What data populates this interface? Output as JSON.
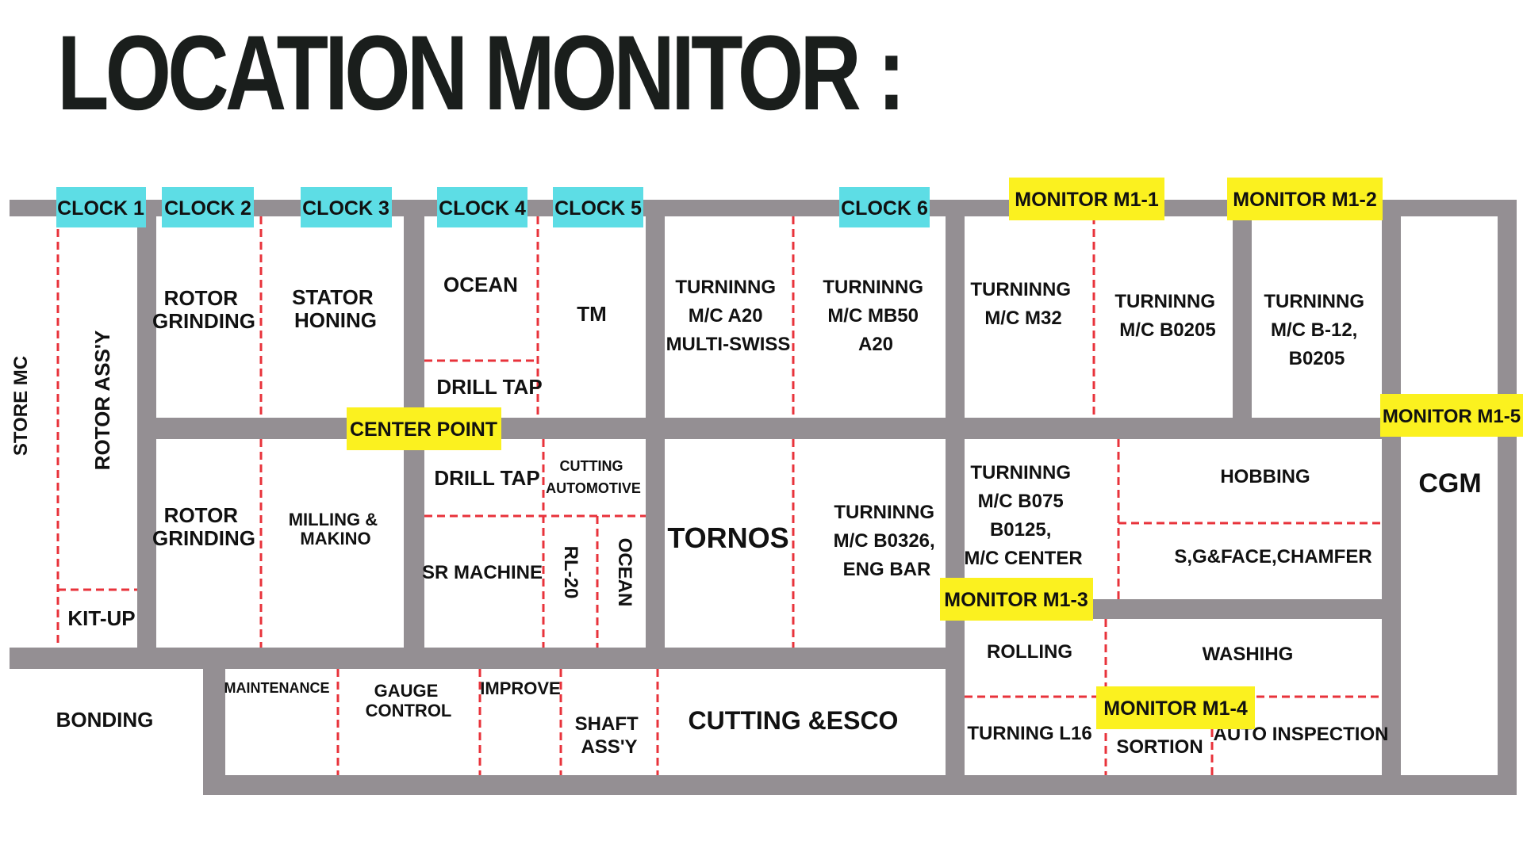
{
  "page": {
    "title": "LOCATION MONITOR :"
  },
  "colors": {
    "wall": "#948f93",
    "divider": "#e8333b",
    "clock_tag": "#5ddde5",
    "monitor_tag": "#fbf11f",
    "text": "#111111",
    "title": "#1a1e1c"
  },
  "areas": {
    "store_mc": "STORE MC",
    "rotor_assy": "ROTOR ASS'Y",
    "kit_up": "KIT-UP",
    "rotor_grinding_top": [
      "ROTOR",
      "GRINDING"
    ],
    "stator_honing": [
      "STATOR",
      "HONING"
    ],
    "ocean_top": "OCEAN",
    "drill_tap_top": "DRILL TAP",
    "tm": "TM",
    "turning_a20": [
      "TURNINNG",
      "M/C A20",
      "MULTI-SWISS"
    ],
    "turning_mb50": [
      "TURNINNG",
      "M/C MB50",
      "A20"
    ],
    "turning_m32": [
      "TURNINNG",
      "M/C M32"
    ],
    "turning_b0205": [
      "TURNINNG",
      "M/C B0205"
    ],
    "turning_b12": [
      "TURNINNG",
      "M/C B-12,",
      "B0205"
    ],
    "rotor_grinding_bottom": [
      "ROTOR",
      "GRINDING"
    ],
    "milling_makino": [
      "MILLING &",
      "MAKINO"
    ],
    "drill_tap_bottom": "DRILL TAP",
    "cutting_automotive": [
      "CUTTING",
      "AUTOMOTIVE"
    ],
    "sr_machine": "SR MACHINE",
    "rl_20": "RL-20",
    "ocean_bottom": "OCEAN",
    "tornos": "TORNOS",
    "turning_b0326": [
      "TURNINNG",
      "M/C B0326,",
      "ENG BAR"
    ],
    "turning_b075": [
      "TURNINNG",
      "M/C B075",
      "B0125,",
      "M/C CENTER"
    ],
    "hobbing": "HOBBING",
    "sg_face_chamfer": "S,G&FACE,CHAMFER",
    "cgm": "CGM",
    "bonding": "BONDING",
    "maintenance": "MAINTENANCE",
    "gauge_control": [
      "GAUGE",
      "CONTROL"
    ],
    "improve": "IMPROVE",
    "shaft_assy": [
      "SHAFT",
      "ASS'Y"
    ],
    "cutting_esco": "CUTTING &ESCO",
    "rolling": "ROLLING",
    "washihg": "WASHIHG",
    "turning_l16": "TURNING L16",
    "sortion": "SORTION",
    "auto_inspection": "AUTO INSPECTION"
  },
  "clocks": [
    "CLOCK 1",
    "CLOCK 2",
    "CLOCK 3",
    "CLOCK 4",
    "CLOCK 5",
    "CLOCK 6"
  ],
  "monitors": {
    "m1_1": "MONITOR M1-1",
    "m1_2": "MONITOR M1-2",
    "m1_3": "MONITOR M1-3",
    "m1_4": "MONITOR M1-4",
    "m1_5": "MONITOR M1-5",
    "center_point": "CENTER POINT"
  }
}
